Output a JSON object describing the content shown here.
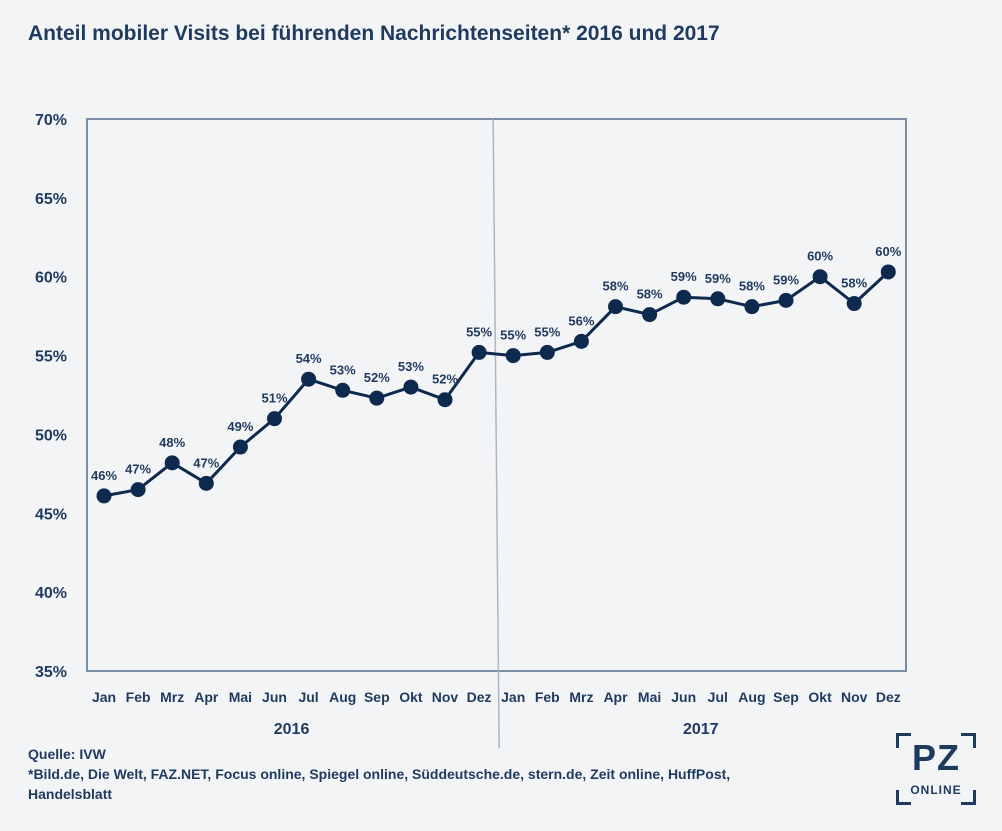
{
  "chart_data": {
    "type": "line",
    "title": "Anteil mobiler Visits bei führenden Nachrichtenseiten* 2016 und 2017",
    "categories": [
      "Jan",
      "Feb",
      "Mrz",
      "Apr",
      "Mai",
      "Jun",
      "Jul",
      "Aug",
      "Sep",
      "Okt",
      "Nov",
      "Dez",
      "Jan",
      "Feb",
      "Mrz",
      "Apr",
      "Mai",
      "Jun",
      "Jul",
      "Aug",
      "Sep",
      "Okt",
      "Nov",
      "Dez"
    ],
    "groups": [
      {
        "label": "2016",
        "count": 12
      },
      {
        "label": "2017",
        "count": 12
      }
    ],
    "values": [
      46.1,
      46.5,
      48.2,
      46.9,
      49.2,
      51.0,
      53.5,
      52.8,
      52.3,
      53.0,
      52.2,
      55.2,
      55.0,
      55.2,
      55.9,
      58.1,
      57.6,
      58.7,
      58.6,
      58.1,
      58.5,
      60.0,
      58.3,
      60.3
    ],
    "data_labels": [
      "46%",
      "47%",
      "48%",
      "47%",
      "49%",
      "51%",
      "54%",
      "53%",
      "52%",
      "53%",
      "52%",
      "55%",
      "55%",
      "55%",
      "56%",
      "58%",
      "58%",
      "59%",
      "59%",
      "58%",
      "59%",
      "60%",
      "58%",
      "60%"
    ],
    "ylim": [
      35,
      70
    ],
    "yticks": [
      35,
      40,
      45,
      50,
      55,
      60,
      65,
      70
    ],
    "ytick_labels": [
      "35%",
      "40%",
      "45%",
      "50%",
      "55%",
      "60%",
      "65%",
      "70%"
    ],
    "grid": false,
    "colors": {
      "line": "#0d2a4e",
      "frame": "#7a8ea3",
      "text": "#1f3a5f",
      "divider": "#a9b7c6"
    }
  },
  "footnotes": {
    "source": "Quelle: IVW",
    "sites_line1": "*Bild.de, Die Welt, FAZ.NET, Focus online, Spiegel online, Süddeutsche.de, stern.de, Zeit online, HuffPost,",
    "sites_line2": "Handelsblatt"
  },
  "logo": {
    "main": "PZ",
    "sub": "ONLINE"
  }
}
